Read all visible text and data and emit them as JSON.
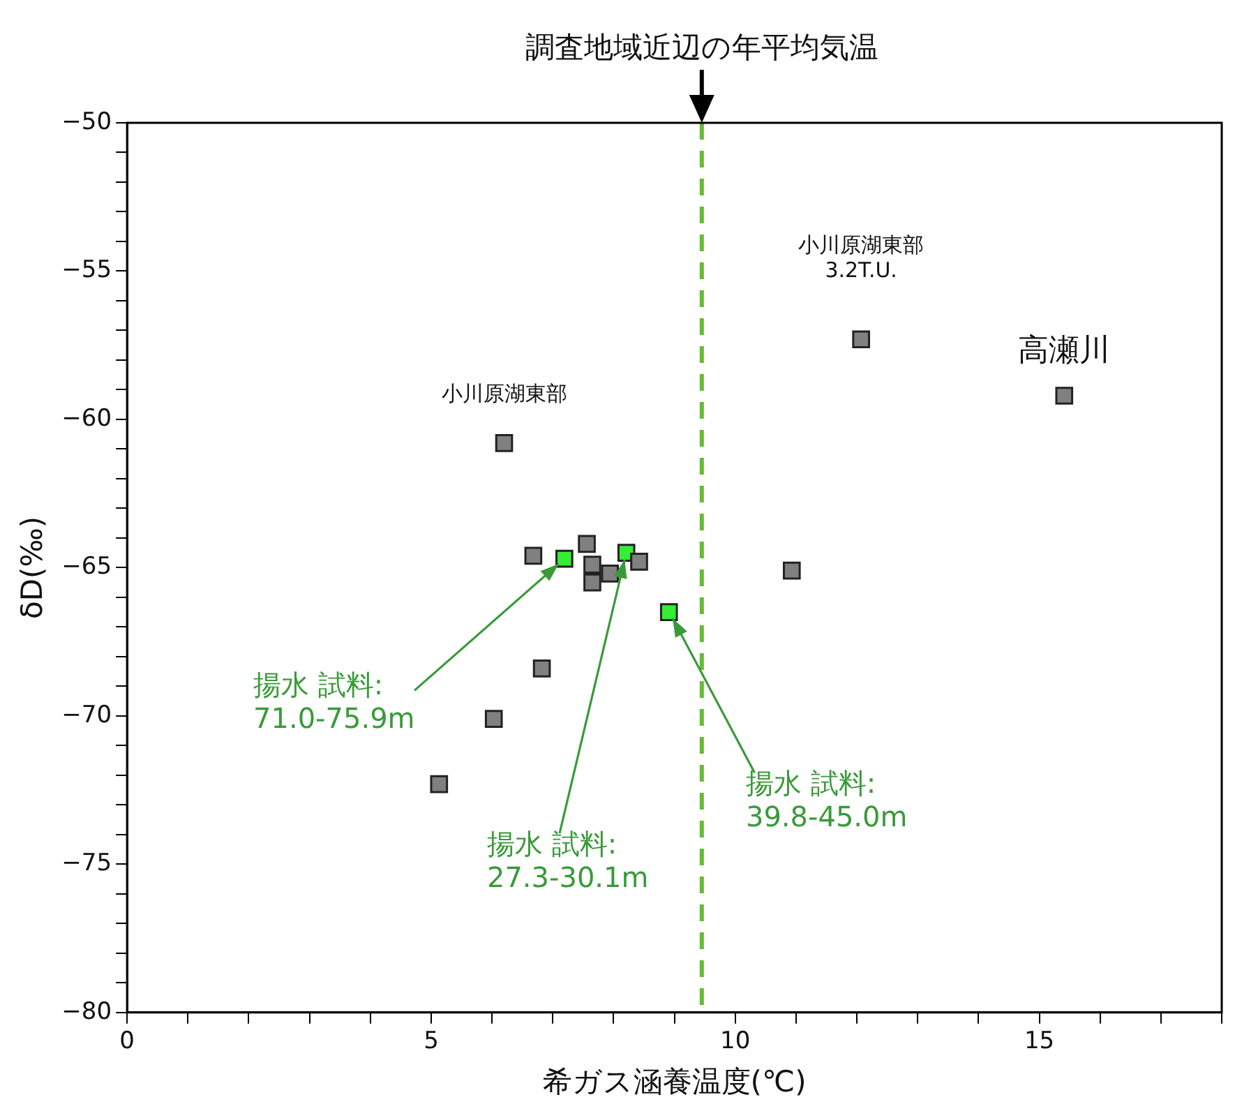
{
  "chart_data": {
    "type": "scatter",
    "xlabel": "希ガス涵養温度(℃)",
    "ylabel": "δD(‰)",
    "series": [
      {
        "color": "#808080",
        "x": [
          6.2,
          6.68,
          7.56,
          7.65,
          7.65,
          7.94,
          8.42,
          6.82,
          6.03,
          5.13,
          12.07,
          15.41,
          10.93
        ],
        "values": [
          -60.8,
          -64.6,
          -64.2,
          -64.9,
          -65.5,
          -65.2,
          -64.8,
          -68.4,
          -70.1,
          -72.3,
          -57.3,
          -59.2,
          -65.1
        ]
      },
      {
        "color": "#33ee33",
        "x": [
          7.19,
          8.21,
          8.91
        ],
        "values": [
          -64.7,
          -64.5,
          -66.5
        ]
      }
    ],
    "xlim": [
      0,
      18
    ],
    "ylim": [
      -80,
      -50
    ],
    "xticks": [
      0,
      {
        "value": 1,
        "label": null
      },
      {
        "value": 2,
        "label": null
      },
      {
        "value": 3,
        "label": null
      },
      {
        "value": 4,
        "label": null
      },
      5,
      {
        "value": 6,
        "label": null
      },
      {
        "value": 7,
        "label": null
      },
      {
        "value": 8,
        "label": null
      },
      {
        "value": 9,
        "label": null
      },
      10,
      {
        "value": 11,
        "label": null
      },
      {
        "value": 12,
        "label": null
      },
      {
        "value": 13,
        "label": null
      },
      {
        "value": 14,
        "label": null
      },
      15,
      {
        "value": 16,
        "label": null
      },
      {
        "value": 17,
        "label": null
      },
      {
        "value": 18,
        "label": null
      }
    ],
    "yticks": [
      -80,
      {
        "value": -79,
        "label": null
      },
      {
        "value": -78,
        "label": null
      },
      {
        "value": -77,
        "label": null
      },
      {
        "value": -76,
        "label": null
      },
      -75,
      {
        "value": -74,
        "label": null
      },
      {
        "value": -73,
        "label": null
      },
      {
        "value": -72,
        "label": null
      },
      {
        "value": -71,
        "label": null
      },
      -70,
      {
        "value": -69,
        "label": null
      },
      {
        "value": -68,
        "label": null
      },
      {
        "value": -67,
        "label": null
      },
      {
        "value": -66,
        "label": null
      },
      -65,
      {
        "value": -64,
        "label": null
      },
      {
        "value": -63,
        "label": null
      },
      {
        "value": -62,
        "label": null
      },
      {
        "value": -61,
        "label": null
      },
      -60,
      {
        "value": -59,
        "label": null
      },
      {
        "value": -58,
        "label": null
      },
      {
        "value": -57,
        "label": null
      },
      {
        "value": -56,
        "label": null
      },
      -55,
      {
        "value": -54,
        "label": null
      },
      {
        "value": -53,
        "label": null
      },
      {
        "value": -52,
        "label": null
      },
      {
        "value": -51,
        "label": null
      },
      -50
    ],
    "grid": false,
    "legend": false,
    "marker": "square",
    "ref_lines": [
      {
        "axis": "x",
        "value": 9.45,
        "label": "調査地域近辺の年平均気温",
        "color": "#66bb33",
        "line_style": "dashed"
      }
    ],
    "annotations": [
      {
        "text": "小川原湖東部",
        "x": 6.2,
        "y": -60.8
      },
      {
        "text": "小川原湖東部\n3.2T.U.",
        "x": 12.07,
        "y": -57.3
      },
      {
        "text": "高瀬川",
        "x": 15.41,
        "y": -59.2
      },
      {
        "text": "揚水 試料:\n71.0-75.9m",
        "x": 7.19,
        "y": -64.7
      },
      {
        "text": "揚水 試料:\n27.3-30.1m",
        "x": 8.21,
        "y": -64.5
      },
      {
        "text": "揚水 試料:\n39.8-45.0m",
        "x": 8.91,
        "y": -66.5
      }
    ]
  }
}
